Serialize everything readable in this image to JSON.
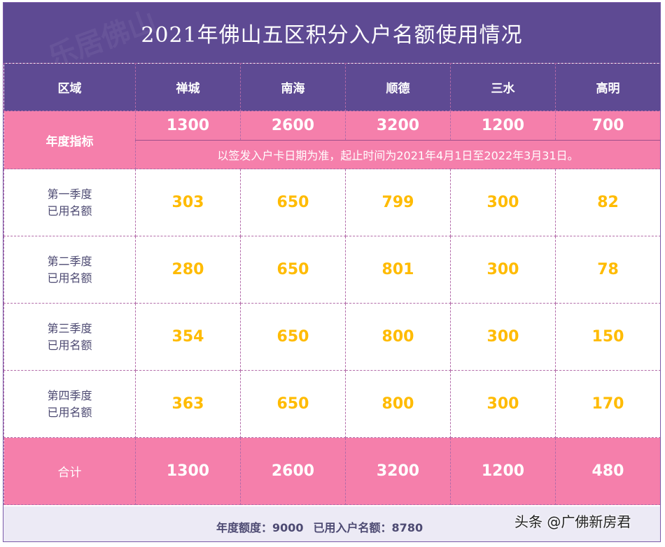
{
  "title": "2021年佛山五区积分入户名额使用情况",
  "watermark": "乐居佛山",
  "header": {
    "region_label": "区域",
    "regions": [
      "禅城",
      "南海",
      "顺德",
      "三水",
      "高明"
    ]
  },
  "annual": {
    "label": "年度指标",
    "values": [
      "1300",
      "2600",
      "3200",
      "1200",
      "700"
    ],
    "note": "以签发入户卡日期为准，起止时间为2021年4月1日至2022年3月31日。"
  },
  "quarters": [
    {
      "label_line1": "第一季度",
      "label_line2": "已用名额",
      "values": [
        "303",
        "650",
        "799",
        "300",
        "82"
      ]
    },
    {
      "label_line1": "第二季度",
      "label_line2": "已用名额",
      "values": [
        "280",
        "650",
        "801",
        "300",
        "78"
      ]
    },
    {
      "label_line1": "第三季度",
      "label_line2": "已用名额",
      "values": [
        "354",
        "650",
        "800",
        "300",
        "150"
      ]
    },
    {
      "label_line1": "第四季度",
      "label_line2": "已用名额",
      "values": [
        "363",
        "650",
        "800",
        "300",
        "170"
      ]
    }
  ],
  "total": {
    "label": "合计",
    "values": [
      "1300",
      "2600",
      "3200",
      "1200",
      "480"
    ]
  },
  "footer": {
    "annual_quota": "年度额度：9000",
    "used_quota": "已用入户名额：8780"
  },
  "credit": "头条 @广佛新房君",
  "colors": {
    "purple": "#5e4a93",
    "pink": "#f57fab",
    "value_yellow": "#ffbb00"
  }
}
